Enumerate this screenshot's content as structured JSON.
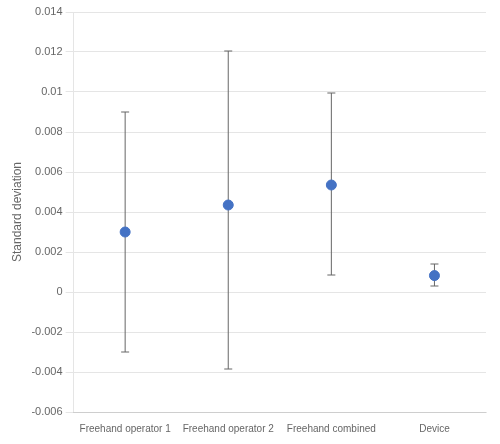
{
  "chart_data": {
    "type": "scatter",
    "categories": [
      "Freehand operator 1",
      "Freehand operator 2",
      "Freehand combined",
      "Device"
    ],
    "values": [
      0.003,
      0.00435,
      0.00535,
      0.00082
    ],
    "errors": {
      "upper": [
        0.006,
        0.0077,
        0.0046,
        0.00058
      ],
      "lower": [
        0.006,
        0.0082,
        0.0045,
        0.00052
      ],
      "color": "#666666"
    },
    "color": "#4472C4",
    "marker": "circle",
    "ylabel": "Standard deviation",
    "ylim": [
      -0.006,
      0.014
    ],
    "yticks": [
      -0.006,
      -0.004,
      -0.002,
      0,
      0.002,
      0.004,
      0.006,
      0.008,
      0.01,
      0.012,
      0.014
    ],
    "grid": "y"
  }
}
